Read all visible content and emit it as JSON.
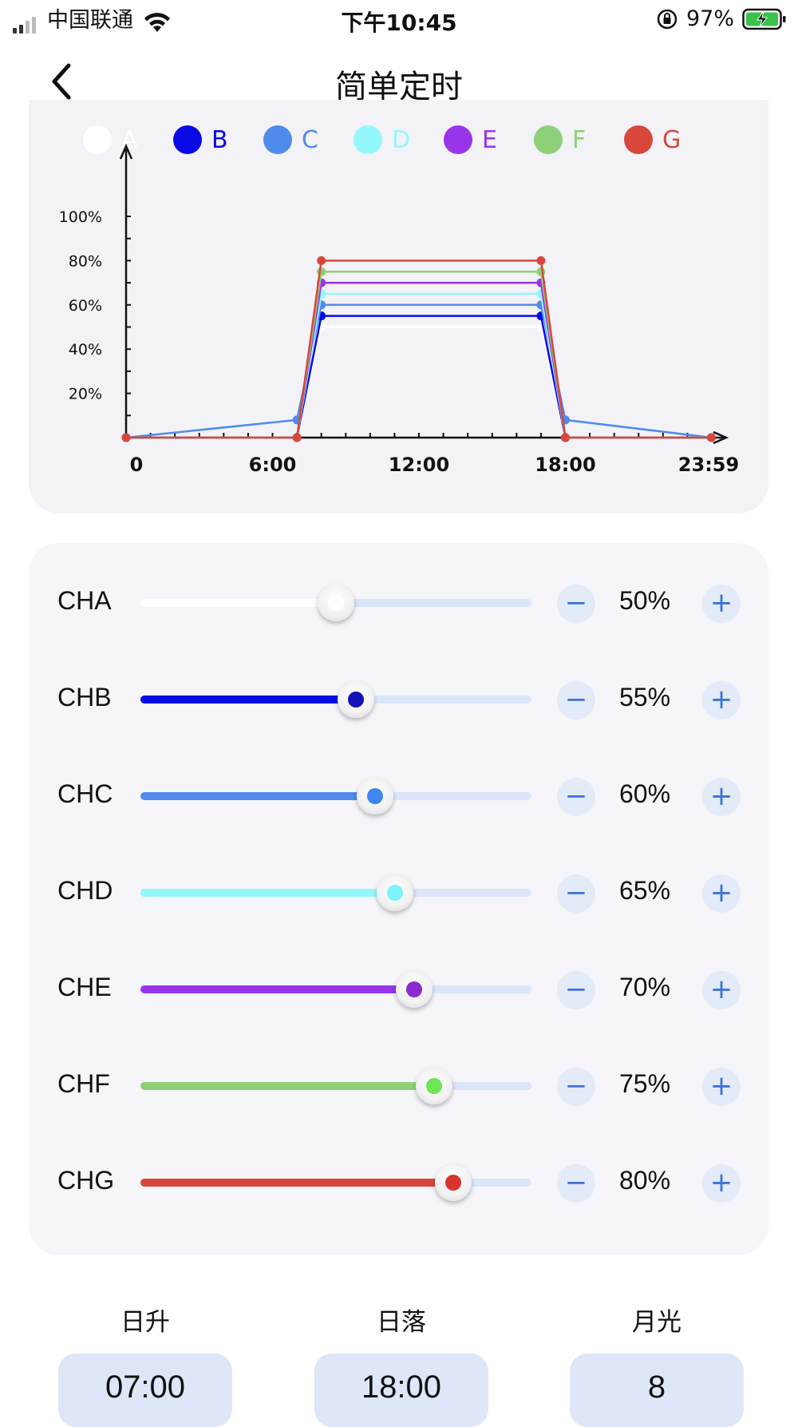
{
  "status_bar": {
    "carrier": "中国联通",
    "time": "下午10:45",
    "battery": "97%"
  },
  "nav": {
    "title": "简单定时"
  },
  "legend": [
    {
      "label": "A",
      "color": "#ffffff"
    },
    {
      "label": "B",
      "color": "#0a0ae6"
    },
    {
      "label": "C",
      "color": "#4f8bea"
    },
    {
      "label": "D",
      "color": "#94f7fb"
    },
    {
      "label": "E",
      "color": "#9735ea"
    },
    {
      "label": "F",
      "color": "#8dd078"
    },
    {
      "label": "G",
      "color": "#d8473a"
    }
  ],
  "chart_data": {
    "type": "line",
    "x_tick_labels": [
      "0",
      "6:00",
      "12:00",
      "18:00",
      "23:59"
    ],
    "y_tick_labels": [
      "20%",
      "40%",
      "60%",
      "80%",
      "100%"
    ],
    "x_range_hours": [
      0,
      24
    ],
    "ylim": [
      0,
      100
    ],
    "series": [
      {
        "name": "A",
        "color": "#ffffff",
        "points": [
          [
            "0:00",
            0
          ],
          [
            "7:00",
            0
          ],
          [
            "8:00",
            50
          ],
          [
            "17:00",
            50
          ],
          [
            "18:00",
            0
          ],
          [
            "23:59",
            0
          ]
        ]
      },
      {
        "name": "B",
        "color": "#0a0ae6",
        "points": [
          [
            "0:00",
            0
          ],
          [
            "7:00",
            0
          ],
          [
            "8:00",
            55
          ],
          [
            "17:00",
            55
          ],
          [
            "18:00",
            0
          ],
          [
            "23:59",
            0
          ]
        ]
      },
      {
        "name": "C",
        "color": "#4f8bea",
        "points": [
          [
            "0:00",
            0
          ],
          [
            "7:00",
            8
          ],
          [
            "8:00",
            60
          ],
          [
            "17:00",
            60
          ],
          [
            "18:00",
            8
          ],
          [
            "23:59",
            0
          ]
        ]
      },
      {
        "name": "D",
        "color": "#94f7fb",
        "points": [
          [
            "0:00",
            0
          ],
          [
            "7:00",
            0
          ],
          [
            "8:00",
            65
          ],
          [
            "17:00",
            65
          ],
          [
            "18:00",
            0
          ],
          [
            "23:59",
            0
          ]
        ]
      },
      {
        "name": "E",
        "color": "#9735ea",
        "points": [
          [
            "0:00",
            0
          ],
          [
            "7:00",
            0
          ],
          [
            "8:00",
            70
          ],
          [
            "17:00",
            70
          ],
          [
            "18:00",
            0
          ],
          [
            "23:59",
            0
          ]
        ]
      },
      {
        "name": "F",
        "color": "#8dd078",
        "points": [
          [
            "0:00",
            0
          ],
          [
            "7:00",
            0
          ],
          [
            "8:00",
            75
          ],
          [
            "17:00",
            75
          ],
          [
            "18:00",
            0
          ],
          [
            "23:59",
            0
          ]
        ]
      },
      {
        "name": "G",
        "color": "#d8473a",
        "points": [
          [
            "0:00",
            0
          ],
          [
            "7:00",
            0
          ],
          [
            "8:00",
            80
          ],
          [
            "17:00",
            80
          ],
          [
            "18:00",
            0
          ],
          [
            "23:59",
            0
          ]
        ]
      }
    ]
  },
  "channels": [
    {
      "label": "CHA",
      "percent": 50,
      "percent_text": "50%",
      "color": "#ffffff",
      "dot_color": "#ffffff"
    },
    {
      "label": "CHB",
      "percent": 55,
      "percent_text": "55%",
      "color": "#0a0ae6",
      "dot_color": "#1212b8"
    },
    {
      "label": "CHC",
      "percent": 60,
      "percent_text": "60%",
      "color": "#4f8bea",
      "dot_color": "#3f86ef"
    },
    {
      "label": "CHD",
      "percent": 65,
      "percent_text": "65%",
      "color": "#94f7fb",
      "dot_color": "#7df3fa"
    },
    {
      "label": "CHE",
      "percent": 70,
      "percent_text": "70%",
      "color": "#9735ea",
      "dot_color": "#8a2ad0"
    },
    {
      "label": "CHF",
      "percent": 75,
      "percent_text": "75%",
      "color": "#8dd078",
      "dot_color": "#6ee554"
    },
    {
      "label": "CHG",
      "percent": 80,
      "percent_text": "80%",
      "color": "#d8473a",
      "dot_color": "#d8342c"
    }
  ],
  "controls": {
    "minus": "−",
    "plus": "+"
  },
  "schedule": {
    "sunrise_label": "日升",
    "sunrise_value": "07:00",
    "sunset_label": "日落",
    "sunset_value": "18:00",
    "moonlight_label": "月光",
    "moonlight_value": "8"
  }
}
